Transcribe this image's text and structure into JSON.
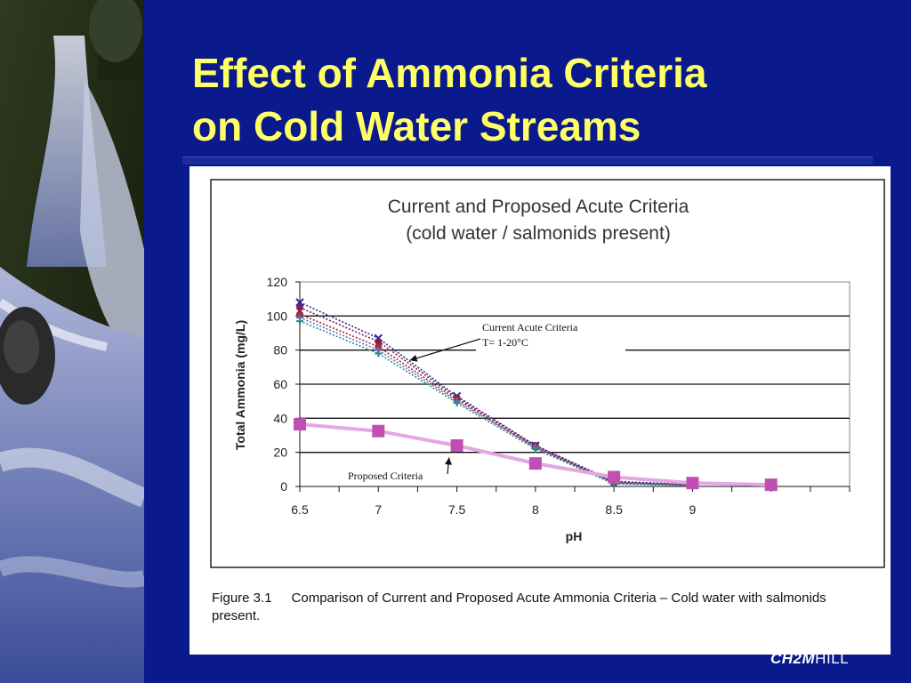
{
  "slide": {
    "title_line1": "Effect of Ammonia Criteria",
    "title_line2": "on Cold Water Streams",
    "logo_bold": "CH2M",
    "logo_light": "HILL"
  },
  "caption": {
    "figure_number": "Figure 3.1",
    "text": "Comparison of Current and Proposed Acute Ammonia Criteria – Cold water with salmonids present."
  },
  "colors": {
    "background": "#0a1a8c",
    "title": "#ffff66",
    "proposed_line": "#e4a8e0",
    "proposed_marker": "#c04fb4",
    "current_markers": [
      "#2b2b8f",
      "#7a1f5c",
      "#9e2a2a",
      "#6b6bc8",
      "#2a8a8a"
    ]
  },
  "chart_data": {
    "type": "line",
    "title_line1": "Current and Proposed Acute Criteria",
    "title_line2": "(cold water / salmonids present)",
    "xlabel": "pH",
    "ylabel": "Total Ammonia (mg/L)",
    "ylim": [
      0,
      120
    ],
    "xlim": [
      6.5,
      10
    ],
    "y_ticks": [
      0,
      20,
      40,
      60,
      80,
      100,
      120
    ],
    "x_tick_labels": [
      {
        "value": 6.5,
        "label": "6.5"
      },
      {
        "value": 7,
        "label": "7"
      },
      {
        "value": 7.5,
        "label": "7.5"
      },
      {
        "value": 8,
        "label": "8"
      },
      {
        "value": 8.5,
        "label": "8.5"
      },
      {
        "value": 9,
        "label": "9"
      }
    ],
    "grid": "horizontal",
    "current_series": [
      {
        "marker": "x",
        "x": [
          6.5,
          7.0,
          7.5,
          8.0,
          8.5,
          9.0
        ],
        "y": [
          108,
          87,
          53,
          24,
          3,
          1
        ]
      },
      {
        "marker": "circle",
        "x": [
          6.5,
          7.0,
          7.5,
          8.0,
          8.5,
          9.0
        ],
        "y": [
          105,
          85,
          52,
          24,
          2.5,
          1
        ]
      },
      {
        "marker": "circle",
        "x": [
          6.5,
          7.0,
          7.5,
          8.0,
          8.5,
          9.0
        ],
        "y": [
          101,
          82,
          51,
          23,
          2,
          0.8
        ]
      },
      {
        "marker": "plus",
        "x": [
          6.5,
          7.0,
          7.5,
          8.0,
          8.5,
          9.0
        ],
        "y": [
          99,
          80,
          50,
          23,
          2,
          0.7
        ]
      },
      {
        "marker": "plus",
        "x": [
          6.5,
          7.0,
          7.5,
          8.0,
          8.5,
          9.0
        ],
        "y": [
          97,
          78,
          49,
          22,
          1.5,
          0.5
        ]
      }
    ],
    "proposed_series": {
      "x": [
        6.5,
        7.0,
        7.5,
        8.0,
        8.5,
        9.0,
        9.5
      ],
      "y": [
        36.5,
        32.5,
        24,
        13.5,
        5.5,
        2,
        1
      ]
    },
    "annotations": [
      {
        "text_line1": "Current Acute Criteria",
        "text_line2": "T= 1-20°C",
        "points_to": {
          "x": 7.2,
          "y": 74
        }
      },
      {
        "text": "Proposed Criteria",
        "points_to": {
          "x": 7.45,
          "y": 17
        }
      }
    ]
  }
}
